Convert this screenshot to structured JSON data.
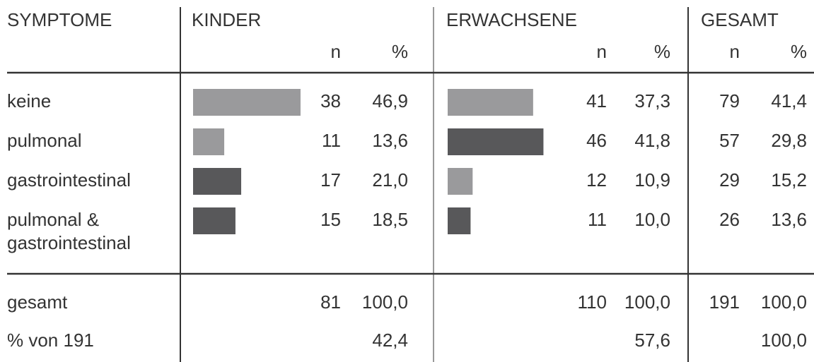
{
  "header": {
    "label": "SYMPTOME",
    "groups": [
      "KINDER",
      "ERWACHSENE",
      "GESAMT"
    ],
    "sub": [
      "n",
      "%"
    ]
  },
  "rows": [
    {
      "label": [
        "keine"
      ],
      "cells": [
        {
          "n": "38",
          "pct": "46,9",
          "bar_color": "#9a9a9c"
        },
        {
          "n": "41",
          "pct": "37,3",
          "bar_color": "#9a9a9c"
        },
        {
          "n": "79",
          "pct": "41,4"
        }
      ]
    },
    {
      "label": [
        "pulmonal"
      ],
      "cells": [
        {
          "n": "11",
          "pct": "13,6",
          "bar_color": "#9a9a9c"
        },
        {
          "n": "46",
          "pct": "41,8",
          "bar_color": "#58585a"
        },
        {
          "n": "57",
          "pct": "29,8"
        }
      ]
    },
    {
      "label": [
        "gastrointestinal"
      ],
      "cells": [
        {
          "n": "17",
          "pct": "21,0",
          "bar_color": "#58585a"
        },
        {
          "n": "12",
          "pct": "10,9",
          "bar_color": "#9a9a9c"
        },
        {
          "n": "29",
          "pct": "15,2"
        }
      ]
    },
    {
      "label": [
        "pulmonal &",
        "gastrointestinal"
      ],
      "cells": [
        {
          "n": "15",
          "pct": "18,5",
          "bar_color": "#58585a"
        },
        {
          "n": "11",
          "pct": "10,0",
          "bar_color": "#58585a"
        },
        {
          "n": "26",
          "pct": "13,6"
        }
      ]
    }
  ],
  "footer": [
    {
      "label": [
        "gesamt"
      ],
      "cells": [
        {
          "n": "81",
          "pct": "100,0"
        },
        {
          "n": "110",
          "pct": "100,0"
        },
        {
          "n": "191",
          "pct": "100,0"
        }
      ]
    },
    {
      "label": [
        "% von 191"
      ],
      "cells": [
        {
          "pct": "42,4"
        },
        {
          "pct": "57,6"
        },
        {
          "pct": "100,0"
        }
      ]
    }
  ]
}
